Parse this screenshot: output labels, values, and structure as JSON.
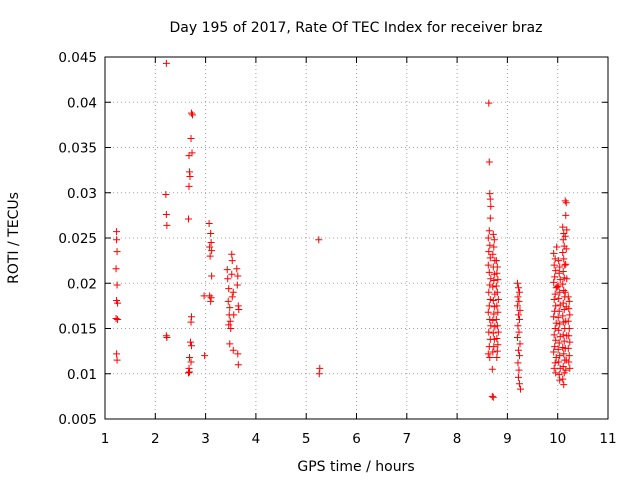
{
  "chart_data": {
    "type": "scatter",
    "title": "Day 195 of 2017, Rate Of TEC Index for receiver braz",
    "xlabel": "GPS time / hours",
    "ylabel": "ROTI / TECUs",
    "xlim": [
      1,
      11
    ],
    "ylim": [
      0.005,
      0.045
    ],
    "xticks": [
      "1",
      "2",
      "3",
      "4",
      "5",
      "6",
      "7",
      "8",
      "9",
      "10",
      "11"
    ],
    "yticks": [
      "0.005",
      "0.01",
      "0.015",
      "0.02",
      "0.025",
      "0.03",
      "0.035",
      "0.04",
      "0.045"
    ],
    "grid": true,
    "marker": "+",
    "color": "#ff0000",
    "points": [
      [
        1.23,
        0.0257
      ],
      [
        1.23,
        0.0248
      ],
      [
        1.24,
        0.0235
      ],
      [
        1.22,
        0.0216
      ],
      [
        1.24,
        0.0198
      ],
      [
        1.23,
        0.0181
      ],
      [
        1.25,
        0.0178
      ],
      [
        1.22,
        0.0161
      ],
      [
        1.25,
        0.016
      ],
      [
        1.23,
        0.0122
      ],
      [
        1.24,
        0.0115
      ],
      [
        2.22,
        0.0443
      ],
      [
        2.21,
        0.0298
      ],
      [
        2.22,
        0.0276
      ],
      [
        2.23,
        0.0264
      ],
      [
        2.22,
        0.0142
      ],
      [
        2.23,
        0.014
      ],
      [
        2.67,
        0.0341
      ],
      [
        2.68,
        0.0323
      ],
      [
        2.69,
        0.0318
      ],
      [
        2.67,
        0.0307
      ],
      [
        2.66,
        0.0271
      ],
      [
        2.72,
        0.0388
      ],
      [
        2.74,
        0.0386
      ],
      [
        2.71,
        0.036
      ],
      [
        2.73,
        0.0344
      ],
      [
        2.72,
        0.0163
      ],
      [
        2.71,
        0.0157
      ],
      [
        2.7,
        0.0135
      ],
      [
        2.72,
        0.0131
      ],
      [
        2.68,
        0.0118
      ],
      [
        2.71,
        0.0113
      ],
      [
        2.67,
        0.0106
      ],
      [
        2.68,
        0.0102
      ],
      [
        2.66,
        0.0101
      ],
      [
        2.97,
        0.0186
      ],
      [
        2.98,
        0.012
      ],
      [
        3.07,
        0.0266
      ],
      [
        3.1,
        0.0255
      ],
      [
        3.11,
        0.0245
      ],
      [
        3.08,
        0.024
      ],
      [
        3.12,
        0.0236
      ],
      [
        3.09,
        0.023
      ],
      [
        3.08,
        0.0186
      ],
      [
        3.11,
        0.0184
      ],
      [
        3.12,
        0.0208
      ],
      [
        3.1,
        0.018
      ],
      [
        3.43,
        0.0215
      ],
      [
        3.44,
        0.0205
      ],
      [
        3.46,
        0.0194
      ],
      [
        3.45,
        0.018
      ],
      [
        3.48,
        0.0173
      ],
      [
        3.47,
        0.0165
      ],
      [
        3.49,
        0.0158
      ],
      [
        3.46,
        0.0154
      ],
      [
        3.5,
        0.015
      ],
      [
        3.52,
        0.0232
      ],
      [
        3.53,
        0.0225
      ],
      [
        3.52,
        0.021
      ],
      [
        3.55,
        0.019
      ],
      [
        3.53,
        0.0185
      ],
      [
        3.56,
        0.0165
      ],
      [
        3.48,
        0.0133
      ],
      [
        3.55,
        0.0126
      ],
      [
        3.62,
        0.0216
      ],
      [
        3.64,
        0.0208
      ],
      [
        3.63,
        0.0198
      ],
      [
        3.65,
        0.0175
      ],
      [
        3.66,
        0.0171
      ],
      [
        3.64,
        0.0122
      ],
      [
        3.65,
        0.011
      ],
      [
        5.25,
        0.0248
      ],
      [
        5.27,
        0.0106
      ],
      [
        5.26,
        0.01
      ],
      [
        8.63,
        0.0399
      ],
      [
        8.64,
        0.0334
      ],
      [
        8.65,
        0.0299
      ],
      [
        8.66,
        0.0293
      ],
      [
        8.67,
        0.0285
      ],
      [
        8.66,
        0.0272
      ],
      [
        8.64,
        0.0258
      ],
      [
        8.62,
        0.025
      ],
      [
        8.65,
        0.0242
      ],
      [
        8.63,
        0.0235
      ],
      [
        8.66,
        0.0228
      ],
      [
        8.62,
        0.022
      ],
      [
        8.64,
        0.0212
      ],
      [
        8.67,
        0.0205
      ],
      [
        8.65,
        0.0198
      ],
      [
        8.63,
        0.019
      ],
      [
        8.66,
        0.0182
      ],
      [
        8.64,
        0.0175
      ],
      [
        8.62,
        0.0168
      ],
      [
        8.65,
        0.016
      ],
      [
        8.67,
        0.0153
      ],
      [
        8.63,
        0.0146
      ],
      [
        8.66,
        0.0138
      ],
      [
        8.64,
        0.013
      ],
      [
        8.62,
        0.0122
      ],
      [
        8.65,
        0.0118
      ],
      [
        8.72,
        0.0254
      ],
      [
        8.74,
        0.0248
      ],
      [
        8.73,
        0.024
      ],
      [
        8.71,
        0.0232
      ],
      [
        8.75,
        0.0225
      ],
      [
        8.72,
        0.0218
      ],
      [
        8.74,
        0.021
      ],
      [
        8.73,
        0.0203
      ],
      [
        8.71,
        0.0196
      ],
      [
        8.75,
        0.0188
      ],
      [
        8.72,
        0.0181
      ],
      [
        8.74,
        0.0174
      ],
      [
        8.73,
        0.0166
      ],
      [
        8.71,
        0.0159
      ],
      [
        8.75,
        0.0152
      ],
      [
        8.72,
        0.0145
      ],
      [
        8.74,
        0.0138
      ],
      [
        8.73,
        0.013
      ],
      [
        8.71,
        0.0124
      ],
      [
        8.7,
        0.0105
      ],
      [
        8.7,
        0.0075
      ],
      [
        8.72,
        0.0074
      ],
      [
        8.78,
        0.0225
      ],
      [
        8.8,
        0.0218
      ],
      [
        8.79,
        0.0211
      ],
      [
        8.81,
        0.0204
      ],
      [
        8.78,
        0.0197
      ],
      [
        8.8,
        0.019
      ],
      [
        8.82,
        0.0182
      ],
      [
        8.79,
        0.0175
      ],
      [
        8.81,
        0.0168
      ],
      [
        8.78,
        0.016
      ],
      [
        8.8,
        0.0153
      ],
      [
        8.82,
        0.0146
      ],
      [
        8.79,
        0.0139
      ],
      [
        8.81,
        0.0132
      ],
      [
        8.8,
        0.0125
      ],
      [
        8.79,
        0.0118
      ],
      [
        9.2,
        0.02
      ],
      [
        9.22,
        0.0195
      ],
      [
        9.24,
        0.019
      ],
      [
        9.21,
        0.0185
      ],
      [
        9.23,
        0.018
      ],
      [
        9.2,
        0.0175
      ],
      [
        9.25,
        0.017
      ],
      [
        9.22,
        0.0165
      ],
      [
        9.24,
        0.016
      ],
      [
        9.21,
        0.0153
      ],
      [
        9.23,
        0.0146
      ],
      [
        9.2,
        0.014
      ],
      [
        9.25,
        0.0133
      ],
      [
        9.22,
        0.0126
      ],
      [
        9.24,
        0.012
      ],
      [
        9.21,
        0.0112
      ],
      [
        9.23,
        0.0104
      ],
      [
        9.22,
        0.0096
      ],
      [
        9.24,
        0.0089
      ],
      [
        9.26,
        0.0083
      ],
      [
        9.92,
        0.0233
      ],
      [
        9.95,
        0.0227
      ],
      [
        9.93,
        0.022
      ],
      [
        9.96,
        0.0214
      ],
      [
        9.94,
        0.0207
      ],
      [
        9.92,
        0.0201
      ],
      [
        9.97,
        0.0195
      ],
      [
        9.95,
        0.0188
      ],
      [
        9.93,
        0.0182
      ],
      [
        9.96,
        0.0175
      ],
      [
        9.94,
        0.0169
      ],
      [
        9.92,
        0.0163
      ],
      [
        9.97,
        0.0156
      ],
      [
        9.95,
        0.015
      ],
      [
        9.93,
        0.0143
      ],
      [
        9.96,
        0.0137
      ],
      [
        9.94,
        0.013
      ],
      [
        9.92,
        0.0124
      ],
      [
        9.97,
        0.0118
      ],
      [
        9.95,
        0.0112
      ],
      [
        9.93,
        0.0106
      ],
      [
        9.96,
        0.0101
      ],
      [
        9.98,
        0.024
      ],
      [
        9.99,
        0.0196
      ],
      [
        10.02,
        0.0225
      ],
      [
        10.04,
        0.0218
      ],
      [
        10.03,
        0.0211
      ],
      [
        10.05,
        0.0204
      ],
      [
        10.01,
        0.0197
      ],
      [
        10.04,
        0.019
      ],
      [
        10.02,
        0.0183
      ],
      [
        10.05,
        0.0176
      ],
      [
        10.03,
        0.0169
      ],
      [
        10.01,
        0.0162
      ],
      [
        10.04,
        0.0155
      ],
      [
        10.02,
        0.0148
      ],
      [
        10.05,
        0.0141
      ],
      [
        10.03,
        0.0134
      ],
      [
        10.01,
        0.0127
      ],
      [
        10.04,
        0.012
      ],
      [
        10.02,
        0.0113
      ],
      [
        10.05,
        0.0106
      ],
      [
        10.03,
        0.0099
      ],
      [
        10.04,
        0.0093
      ],
      [
        10.1,
        0.0262
      ],
      [
        10.12,
        0.0255
      ],
      [
        10.11,
        0.0248
      ],
      [
        10.13,
        0.0241
      ],
      [
        10.1,
        0.0234
      ],
      [
        10.12,
        0.0227
      ],
      [
        10.14,
        0.022
      ],
      [
        10.11,
        0.0213
      ],
      [
        10.13,
        0.0206
      ],
      [
        10.1,
        0.0199
      ],
      [
        10.12,
        0.0192
      ],
      [
        10.14,
        0.0185
      ],
      [
        10.11,
        0.0178
      ],
      [
        10.13,
        0.0171
      ],
      [
        10.1,
        0.0164
      ],
      [
        10.12,
        0.0157
      ],
      [
        10.14,
        0.015
      ],
      [
        10.11,
        0.0143
      ],
      [
        10.13,
        0.0136
      ],
      [
        10.1,
        0.0129
      ],
      [
        10.12,
        0.0122
      ],
      [
        10.14,
        0.0115
      ],
      [
        10.11,
        0.0108
      ],
      [
        10.13,
        0.0101
      ],
      [
        10.1,
        0.0094
      ],
      [
        10.12,
        0.0088
      ],
      [
        10.15,
        0.0291
      ],
      [
        10.17,
        0.0289
      ],
      [
        10.16,
        0.0275
      ],
      [
        10.18,
        0.0259
      ],
      [
        10.15,
        0.0252
      ],
      [
        10.17,
        0.0238
      ],
      [
        10.16,
        0.0221
      ],
      [
        10.18,
        0.0205
      ],
      [
        10.15,
        0.019
      ],
      [
        10.17,
        0.0174
      ],
      [
        10.16,
        0.0158
      ],
      [
        10.18,
        0.0142
      ],
      [
        10.15,
        0.0128
      ],
      [
        10.17,
        0.0115
      ],
      [
        10.16,
        0.0104
      ],
      [
        10.21,
        0.0185
      ],
      [
        10.23,
        0.018
      ],
      [
        10.22,
        0.0172
      ],
      [
        10.24,
        0.0165
      ],
      [
        10.21,
        0.0158
      ],
      [
        10.23,
        0.015
      ],
      [
        10.22,
        0.0142
      ],
      [
        10.24,
        0.0135
      ],
      [
        10.21,
        0.0128
      ],
      [
        10.23,
        0.012
      ],
      [
        10.22,
        0.0113
      ],
      [
        10.24,
        0.0106
      ]
    ]
  }
}
